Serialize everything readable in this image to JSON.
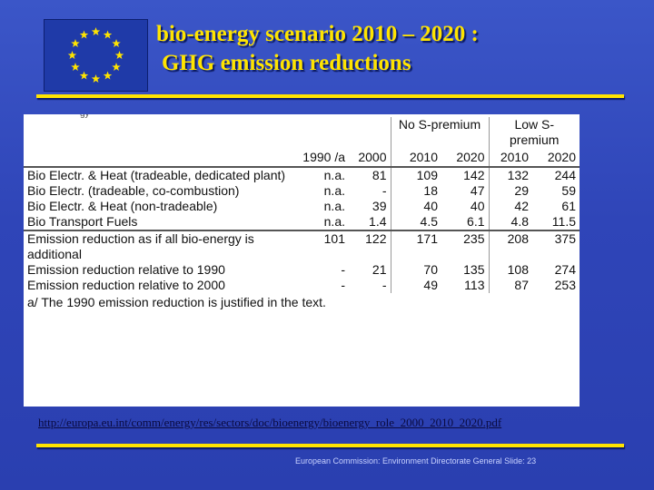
{
  "slide": {
    "title_line1": "bio-energy scenario 2010 – 2020 :",
    "title_line2": "GHG emission reductions",
    "clipped_text": "gy",
    "link": "http://europa.eu.int/comm/energy/res/sectors/doc/bioenergy/bioenergy_role_2000_2010_2020.pdf",
    "footer": "European Commission: Environment Directorate General Slide: 23",
    "flag_icon": "eu-flag-icon",
    "colors": {
      "background": "#2f45b8",
      "title": "#ffe400",
      "rule": "#ffe400",
      "flag": "#1f3aa8",
      "star": "#ffe400"
    }
  },
  "table": {
    "group_headers": [
      "No S-premium",
      "Low S-premium"
    ],
    "columns": [
      "",
      "1990 /a",
      "2000",
      "2010",
      "2020",
      "2010",
      "2020"
    ],
    "rows": [
      {
        "label": "Bio Electr. & Heat (tradeable, dedicated plant)",
        "values": [
          "n.a.",
          "81",
          "109",
          "142",
          "132",
          "244"
        ]
      },
      {
        "label": "Bio Electr. (tradeable, co-combustion)",
        "values": [
          "n.a.",
          "-",
          "18",
          "47",
          "29",
          "59"
        ]
      },
      {
        "label": "Bio Electr. & Heat (non-tradeable)",
        "values": [
          "n.a.",
          "39",
          "40",
          "40",
          "42",
          "61"
        ]
      },
      {
        "label": "Bio Transport Fuels",
        "values": [
          "n.a.",
          "1.4",
          "4.5",
          "6.1",
          "4.8",
          "11.5"
        ]
      },
      {
        "label": "Emission reduction as if all bio-energy is additional",
        "values": [
          "101",
          "122",
          "171",
          "235",
          "208",
          "375"
        ]
      },
      {
        "label": "Emission reduction relative to 1990",
        "values": [
          "-",
          "21",
          "70",
          "135",
          "108",
          "274"
        ]
      },
      {
        "label": "Emission reduction relative to 2000",
        "values": [
          "-",
          "-",
          "49",
          "113",
          "87",
          "253"
        ]
      }
    ],
    "footnote": "a/ The 1990 emission reduction is justified in the text."
  }
}
